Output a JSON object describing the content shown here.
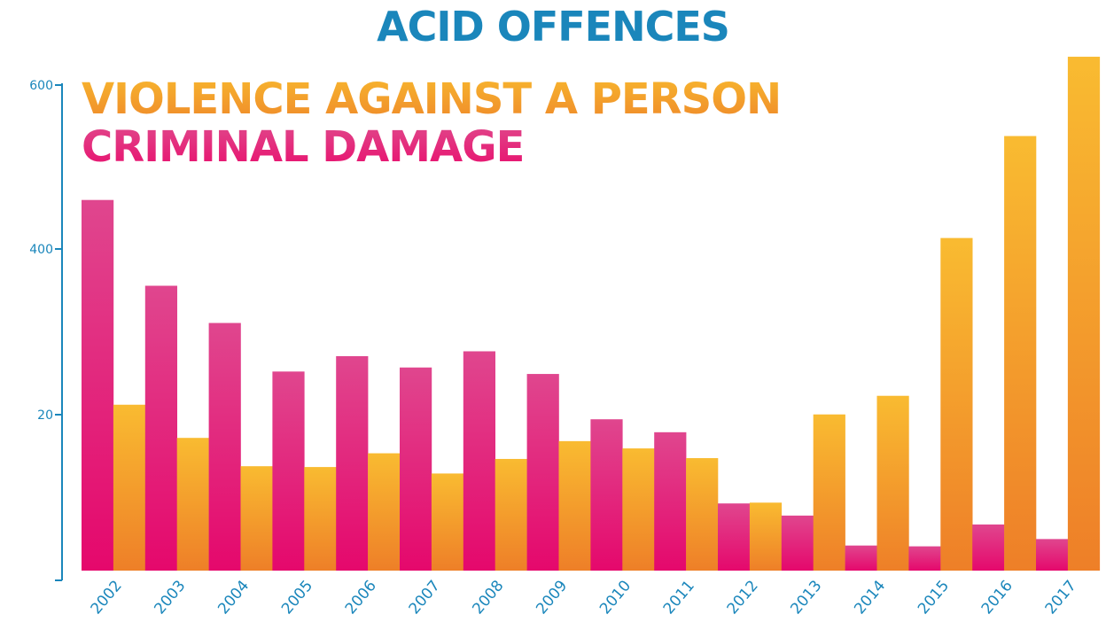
{
  "chart_data": {
    "type": "bar",
    "title": "ACID OFFENCES",
    "categories": [
      "2002",
      "2003",
      "2004",
      "2005",
      "2006",
      "2007",
      "2008",
      "2009",
      "2010",
      "2011",
      "2012",
      "2013",
      "2014",
      "2015",
      "2016",
      "2017"
    ],
    "y_tick_labels": [
      "600",
      "400",
      "20"
    ],
    "series": [
      {
        "name": "CRIMINAL DAMAGE",
        "color": "#e3177a",
        "values": [
          458,
          352,
          306,
          246,
          265,
          251,
          271,
          243,
          187,
          171,
          83,
          68,
          31,
          30,
          57,
          39
        ]
      },
      {
        "name": "VIOLENCE AGAINST A PERSON",
        "color": "#f4a12c",
        "values": [
          205,
          164,
          129,
          128,
          145,
          120,
          138,
          160,
          151,
          139,
          84,
          193,
          216,
          411,
          537,
          635
        ]
      }
    ],
    "ylim": [
      0,
      640
    ],
    "legend_position": "top-left",
    "grid": false
  }
}
